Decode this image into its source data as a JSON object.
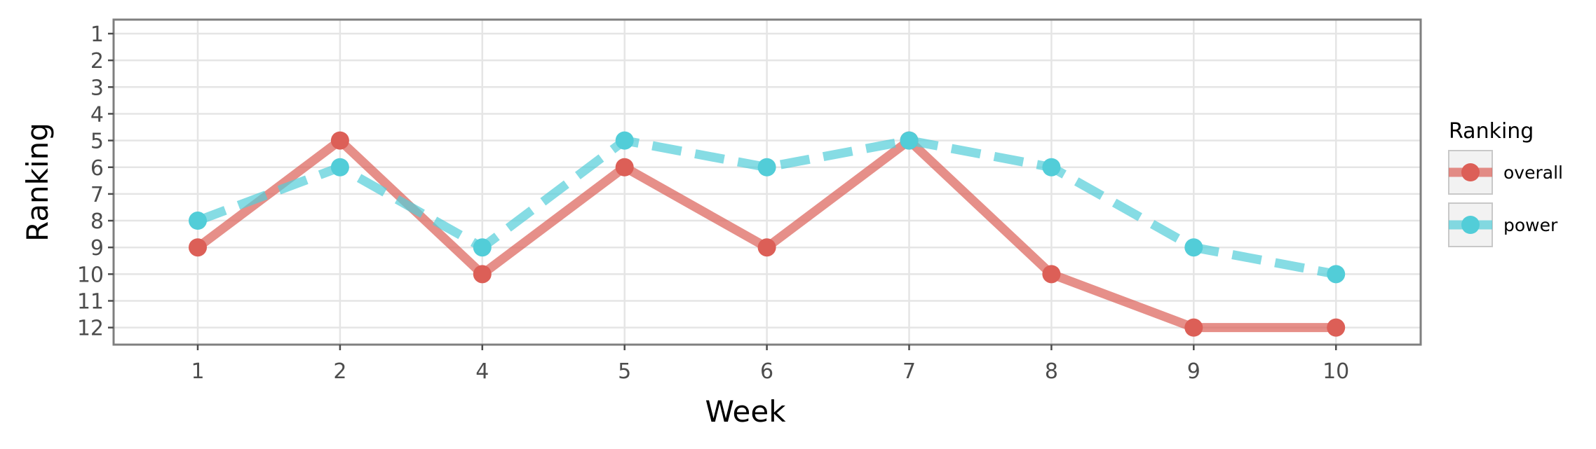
{
  "chart_data": {
    "type": "line",
    "xlabel": "Week",
    "ylabel": "Ranking",
    "categories": [
      "1",
      "2",
      "4",
      "5",
      "6",
      "7",
      "8",
      "9",
      "10"
    ],
    "y_ticks": [
      "1",
      "2",
      "3",
      "4",
      "5",
      "6",
      "7",
      "8",
      "9",
      "10",
      "11",
      "12"
    ],
    "y_reversed": true,
    "ylim": [
      12,
      1
    ],
    "grid": true,
    "legend": {
      "title": "Ranking",
      "placement": "right"
    },
    "series": [
      {
        "name": "overall",
        "values": [
          9,
          5,
          10,
          6,
          9,
          5,
          10,
          12,
          12
        ],
        "color": "#dc5f57",
        "line_style": "solid"
      },
      {
        "name": "power",
        "values": [
          8,
          6,
          9,
          5,
          6,
          5,
          6,
          9,
          10
        ],
        "color": "#52cdd8",
        "line_style": "dashed"
      }
    ]
  }
}
